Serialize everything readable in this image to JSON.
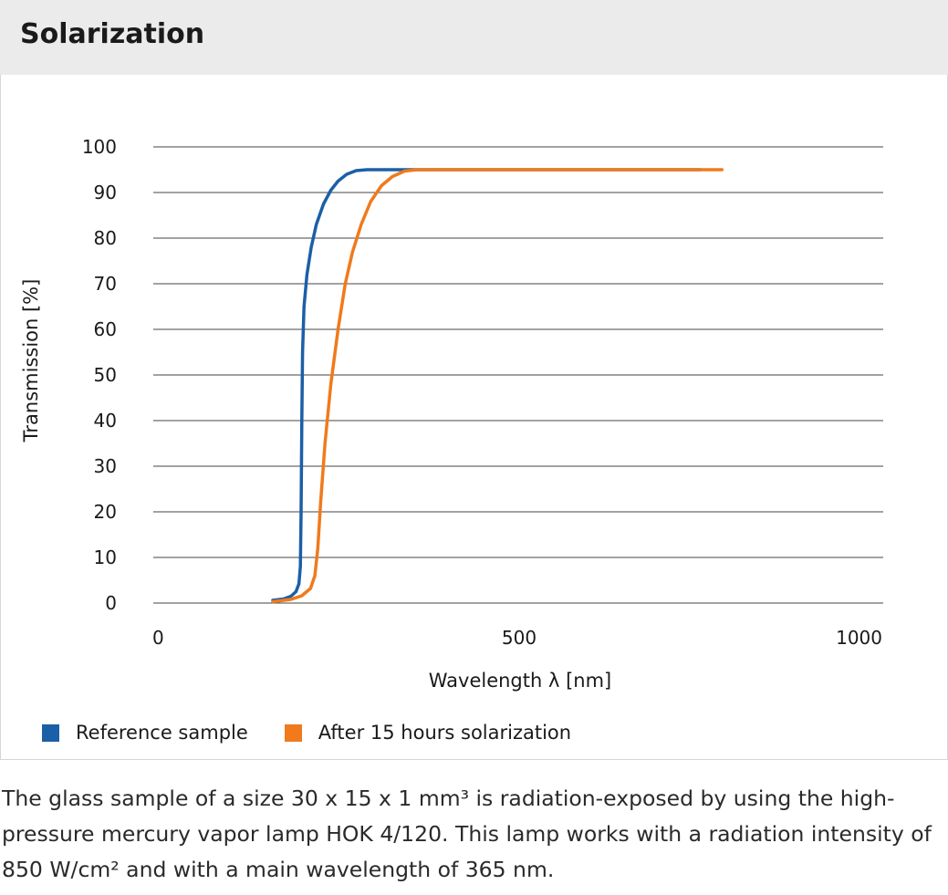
{
  "header": {
    "title": "Solarization"
  },
  "chart_data": {
    "type": "line",
    "title": "",
    "xlabel": "Wavelength λ [nm]",
    "ylabel": "Transmission [%]",
    "xlim": [
      0,
      1000
    ],
    "ylim": [
      0,
      100
    ],
    "xticks": [
      0,
      500,
      1000
    ],
    "yticks": [
      0,
      10,
      20,
      30,
      40,
      50,
      60,
      70,
      80,
      90,
      100
    ],
    "grid": "horizontal",
    "legend_position": "bottom-left",
    "series": [
      {
        "name": "Reference sample",
        "color": "#1b5fa7",
        "points": [
          [
            160,
            0.6
          ],
          [
            175,
            0.9
          ],
          [
            185,
            1.5
          ],
          [
            192,
            2.5
          ],
          [
            196,
            4.2
          ],
          [
            198,
            8
          ],
          [
            199,
            20
          ],
          [
            200,
            40
          ],
          [
            201,
            55
          ],
          [
            203,
            65
          ],
          [
            207,
            72
          ],
          [
            213,
            78
          ],
          [
            220,
            83
          ],
          [
            230,
            87.5
          ],
          [
            240,
            90.5
          ],
          [
            250,
            92.5
          ],
          [
            262,
            94
          ],
          [
            275,
            94.8
          ],
          [
            290,
            95
          ],
          [
            400,
            95
          ],
          [
            600,
            95
          ],
          [
            750,
            95
          ]
        ]
      },
      {
        "name": "After 15 hours solarization",
        "color": "#f07a1c",
        "points": [
          [
            160,
            0.3
          ],
          [
            185,
            0.8
          ],
          [
            200,
            1.6
          ],
          [
            212,
            3.2
          ],
          [
            218,
            6
          ],
          [
            222,
            12
          ],
          [
            226,
            22
          ],
          [
            232,
            35
          ],
          [
            240,
            48
          ],
          [
            250,
            60
          ],
          [
            260,
            70
          ],
          [
            270,
            77
          ],
          [
            282,
            83
          ],
          [
            295,
            88
          ],
          [
            310,
            91.5
          ],
          [
            325,
            93.5
          ],
          [
            342,
            94.7
          ],
          [
            360,
            95
          ],
          [
            500,
            95
          ],
          [
            650,
            95
          ],
          [
            780,
            95
          ]
        ]
      }
    ]
  },
  "caption": "The glass sample of a size 30 x 15 x 1 mm³ is radiation-exposed by using the high-pressure mercury vapor lamp HOK 4/120. This lamp works with a radiation intensity of 850 W/cm² and with a main wavelength of 365 nm."
}
